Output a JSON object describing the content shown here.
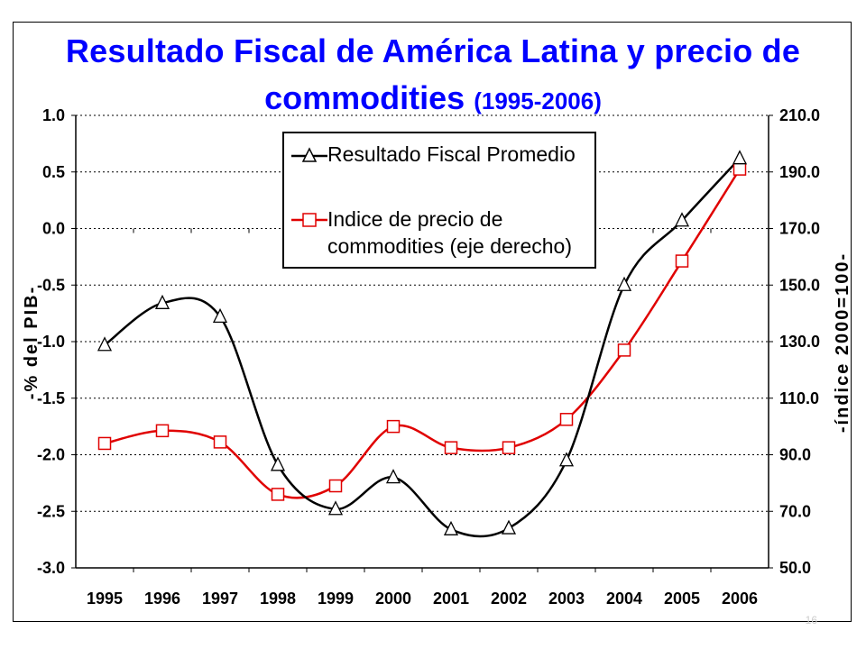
{
  "title": {
    "line1": "Resultado Fiscal de América Latina y precio de",
    "line2_main": "commodities",
    "line2_small": "(1995-2006)"
  },
  "page_number": "16",
  "legend": {
    "series1": "Resultado Fiscal Promedio",
    "series2_line1": "Indice de precio de",
    "series2_line2": "commodities (eje derecho)"
  },
  "colors": {
    "title": "#0000ff",
    "series1": "#000000",
    "series2": "#e00000"
  },
  "chart_data": {
    "type": "line",
    "title": "Resultado Fiscal de América Latina y precio de commodities (1995-2006)",
    "ylabel": "-% del PIB-",
    "ylabel_right": "-índice 2000=100-",
    "categories": [
      "1995",
      "1996",
      "1997",
      "1998",
      "1999",
      "2000",
      "2001",
      "2002",
      "2003",
      "2004",
      "2005",
      "2006"
    ],
    "ylim": [
      -3.0,
      1.0
    ],
    "ylim_right": [
      50.0,
      210.0
    ],
    "yticks": [
      "1.0",
      "0.5",
      "0.0",
      "-0.5",
      "-1.0",
      "-1.5",
      "-2.0",
      "-2.5",
      "-3.0"
    ],
    "yticks_right": [
      "210.0",
      "190.0",
      "170.0",
      "150.0",
      "130.0",
      "110.0",
      "90.0",
      "70.0",
      "50.0"
    ],
    "grid": true,
    "legend_position": "top-center",
    "series": [
      {
        "name": "Resultado Fiscal Promedio",
        "axis": "left",
        "marker": "triangle",
        "values": [
          -1.03,
          -0.66,
          -0.78,
          -2.09,
          -2.48,
          -2.2,
          -2.66,
          -2.65,
          -2.05,
          -0.5,
          0.07,
          0.62
        ]
      },
      {
        "name": "Indice de precio de commodities (eje derecho)",
        "axis": "right",
        "marker": "square",
        "values": [
          94,
          98.5,
          94.5,
          76,
          79,
          100,
          92.5,
          92.5,
          102.5,
          127,
          158.5,
          191
        ]
      }
    ]
  }
}
